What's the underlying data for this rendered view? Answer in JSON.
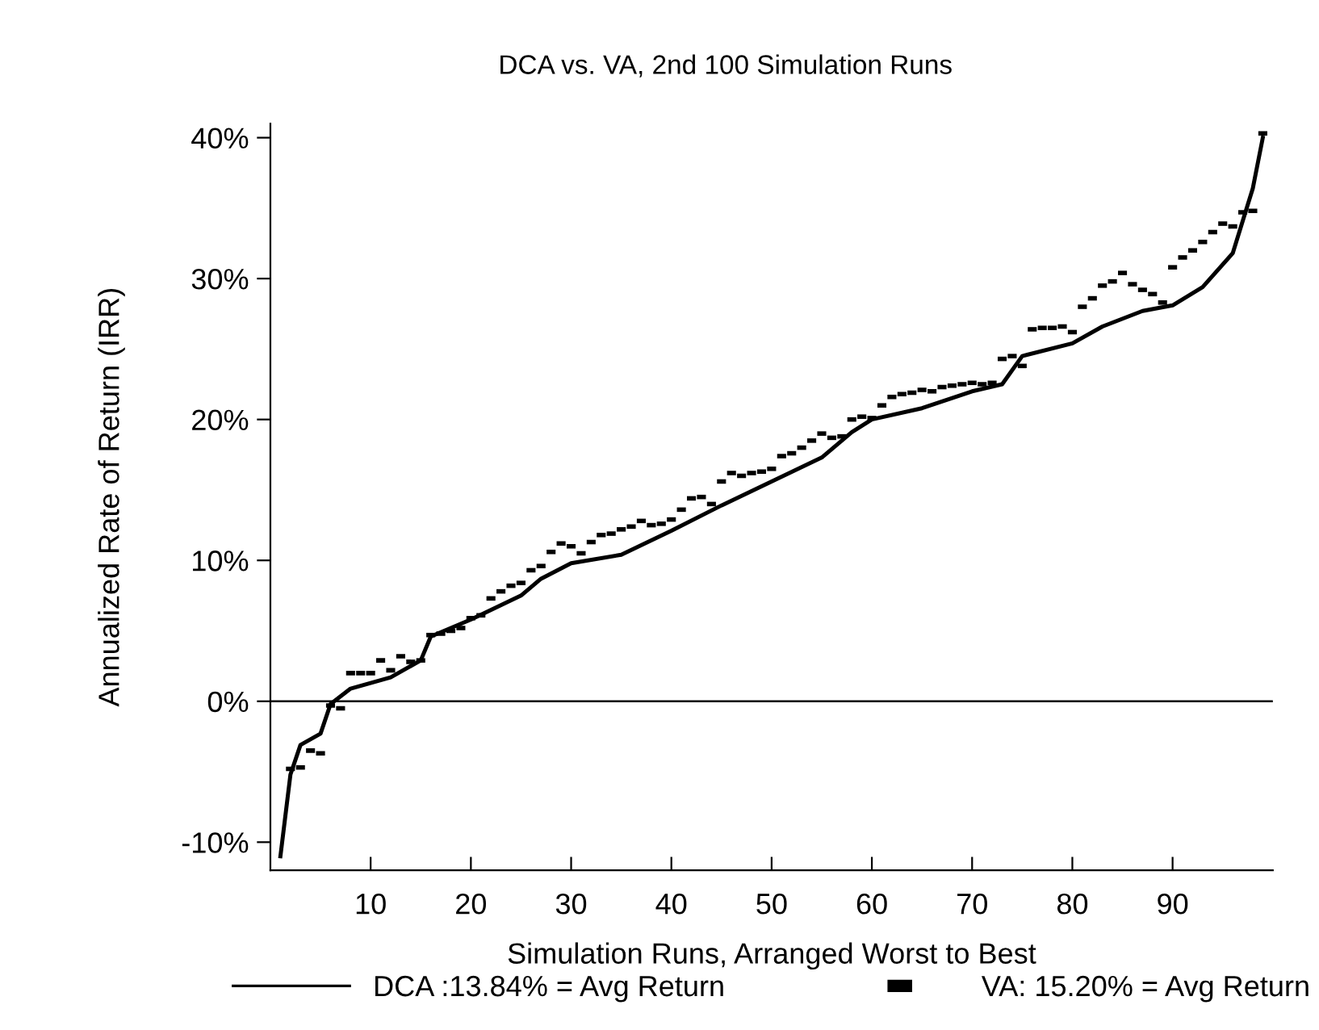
{
  "chart_data": {
    "type": "line",
    "title": "DCA vs. VA, 2nd 100 Simulation Runs",
    "xlabel": "Simulation Runs, Arranged Worst to Best",
    "ylabel": "Annualized Rate of Return (IRR)",
    "xlim": [
      0,
      100
    ],
    "xticks": [
      10,
      20,
      30,
      40,
      50,
      60,
      70,
      80,
      90
    ],
    "ylim": [
      -12,
      41
    ],
    "yticks": [
      {
        "value": -10,
        "label": "-10%"
      },
      {
        "value": 0,
        "label": "0%"
      },
      {
        "value": 10,
        "label": "10%"
      },
      {
        "value": 20,
        "label": "20%"
      },
      {
        "value": 30,
        "label": "30%"
      },
      {
        "value": 40,
        "label": "40%"
      }
    ],
    "grid": false,
    "legend": "bottom",
    "ref_lines": [
      {
        "axis": "y",
        "value": 0,
        "color": "#000000"
      }
    ],
    "series": [
      {
        "name": "DCA :13.84% = Avg Return",
        "color": "#000000",
        "marker": "none",
        "line_style": "solid",
        "x": [
          1,
          2,
          3,
          5,
          6,
          8,
          12,
          15,
          16,
          20,
          25,
          27,
          30,
          35,
          40,
          45,
          50,
          55,
          58,
          60,
          65,
          70,
          73,
          75,
          80,
          83,
          87,
          90,
          93,
          96,
          98,
          99
        ],
        "values": [
          -11,
          -5.2,
          -3.1,
          -2.3,
          -0.2,
          0.9,
          1.7,
          2.9,
          4.6,
          5.8,
          7.5,
          8.7,
          9.8,
          10.4,
          12.1,
          13.9,
          15.6,
          17.3,
          19.1,
          20,
          20.8,
          22,
          22.5,
          24.5,
          25.4,
          26.6,
          27.7,
          28.1,
          29.4,
          31.8,
          36.4,
          40
        ]
      },
      {
        "name": "VA: 15.20% = Avg Return",
        "type": "scatter",
        "color": "#000000",
        "marker": "square",
        "x": [
          2,
          3,
          4,
          5,
          6,
          7,
          8,
          9,
          10,
          11,
          12,
          13,
          14,
          15,
          16,
          17,
          18,
          19,
          20,
          21,
          22,
          23,
          24,
          25,
          26,
          27,
          28,
          29,
          30,
          31,
          32,
          33,
          34,
          35,
          36,
          37,
          38,
          39,
          40,
          41,
          42,
          43,
          44,
          45,
          46,
          47,
          48,
          49,
          50,
          51,
          52,
          53,
          54,
          55,
          56,
          57,
          58,
          59,
          60,
          61,
          62,
          63,
          64,
          65,
          66,
          67,
          68,
          69,
          70,
          71,
          72,
          73,
          74,
          75,
          76,
          77,
          78,
          79,
          80,
          81,
          82,
          83,
          84,
          85,
          86,
          87,
          88,
          89,
          90,
          91,
          92,
          93,
          94,
          95,
          96,
          97,
          98,
          99
        ],
        "values": [
          -4.8,
          -4.7,
          -3.5,
          -3.7,
          -0.3,
          -0.5,
          2.0,
          2.0,
          2.0,
          2.9,
          2.2,
          3.2,
          2.8,
          2.9,
          4.7,
          4.8,
          5.0,
          5.2,
          5.9,
          6.1,
          7.3,
          7.8,
          8.2,
          8.4,
          9.3,
          9.6,
          10.6,
          11.2,
          11.0,
          10.5,
          11.3,
          11.8,
          11.9,
          12.2,
          12.4,
          12.8,
          12.5,
          12.6,
          12.9,
          13.6,
          14.4,
          14.5,
          14.0,
          15.6,
          16.2,
          16.0,
          16.2,
          16.3,
          16.5,
          17.4,
          17.6,
          18.0,
          18.5,
          19.0,
          18.7,
          18.8,
          20.0,
          20.2,
          20.1,
          21.0,
          21.6,
          21.8,
          21.9,
          22.1,
          22.0,
          22.3,
          22.4,
          22.5,
          22.6,
          22.5,
          22.6,
          24.3,
          24.5,
          23.8,
          26.4,
          26.5,
          26.5,
          26.6,
          26.2,
          28.0,
          28.6,
          29.5,
          29.8,
          30.4,
          29.6,
          29.2,
          28.9,
          28.3,
          30.8,
          31.5,
          32.0,
          32.6,
          33.3,
          33.9,
          33.7,
          34.7,
          34.8,
          40.3
        ]
      }
    ]
  }
}
